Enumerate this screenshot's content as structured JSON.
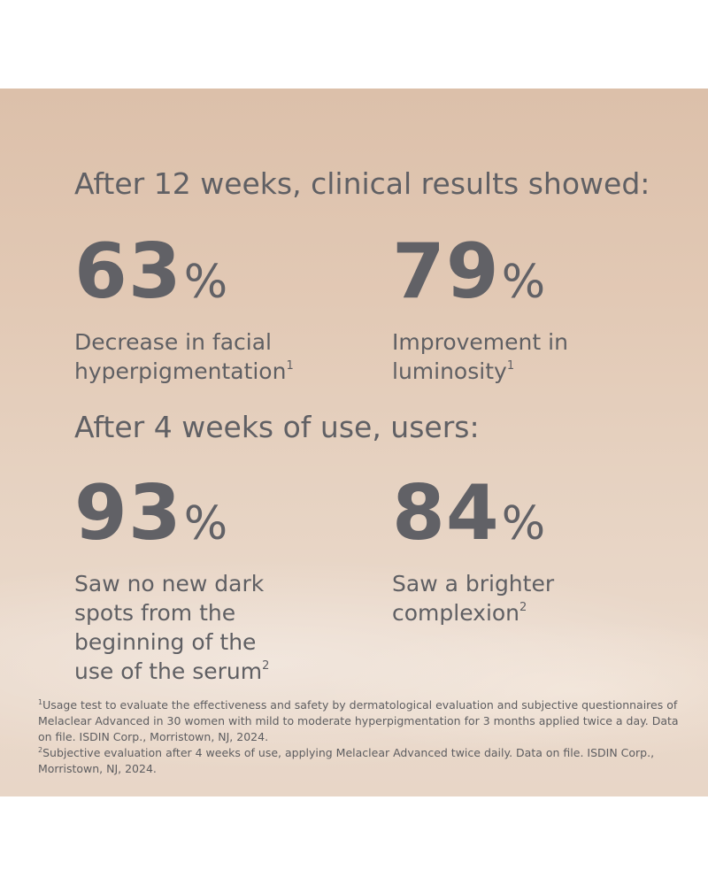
{
  "headings": {
    "twelve_weeks": "After 12 weeks, clinical results showed:",
    "four_weeks": "After 4 weeks of use, users:"
  },
  "stats": [
    {
      "value": "63",
      "unit": "%",
      "line1": "Decrease in facial",
      "line2": "hyperpigmentation",
      "line3": "",
      "line4": "",
      "ref": "1"
    },
    {
      "value": "79",
      "unit": "%",
      "line1": "Improvement in",
      "line2": "luminosity",
      "line3": "",
      "line4": "",
      "ref": "1"
    },
    {
      "value": "93",
      "unit": "%",
      "line1": "Saw no new dark",
      "line2": "spots from the",
      "line3": "beginning of the",
      "line4": "use of the serum",
      "ref": "2"
    },
    {
      "value": "84",
      "unit": "%",
      "line1": "Saw a brighter",
      "line2": "complexion",
      "line3": "",
      "line4": "",
      "ref": "2"
    }
  ],
  "footnotes": [
    {
      "ref": "1",
      "text": "Usage test to evaluate the effectiveness and safety by dermatological evaluation and subjective questionnaires of Melaclear Advanced in 30 women with mild to moderate hyperpigmentation for 3 months applied twice a day. Data on file. ISDIN Corp., Morristown, NJ, 2024."
    },
    {
      "ref": "2",
      "text": "Subjective evaluation after 4 weeks of use, applying Melaclear Advanced twice daily. Data on file. ISDIN Corp., Morristown, NJ, 2024."
    }
  ],
  "colors": {
    "text": "#606064",
    "background_top": "#dcc0aa",
    "background_bottom": "#e8d6c7"
  }
}
